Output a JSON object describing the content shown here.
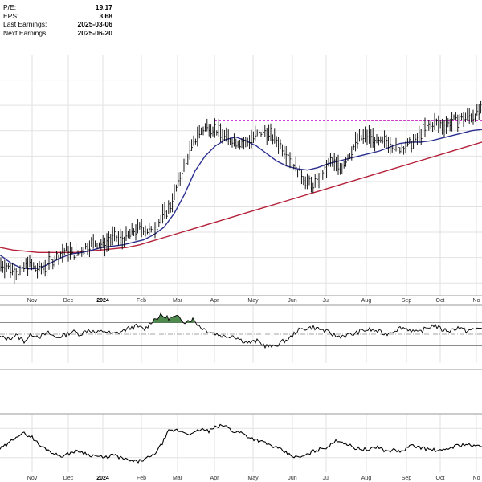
{
  "info_box": {
    "pe_label": "P/E:",
    "pe_value": "19.17",
    "eps_label": "EPS:",
    "eps_value": "3.68",
    "last_earnings_label": "Last Earnings:",
    "last_earnings_value": "2025-03-06",
    "next_earnings_label": "Next Earnings:",
    "next_earnings_value": "2025-06-20"
  },
  "colors": {
    "price_bars": "#000000",
    "ma_short": "#2b2f8f",
    "ma_long": "#b5213a",
    "resistance": "#c000c0",
    "rsi_fill": "#4e8a4e",
    "grid": "#e2e2e2"
  },
  "chart_data": {
    "type": "line",
    "x_axis_labels": [
      "Nov",
      "Dec",
      "2024",
      "Feb",
      "Mar",
      "Apr",
      "May",
      "Jun",
      "Jul",
      "Aug",
      "Sep",
      "Oct",
      "No"
    ],
    "grid": true,
    "price_panel": {
      "series": [
        {
          "kind": "ohlc_bars",
          "values": [
            305,
            302,
            298,
            306,
            300,
            304,
            310,
            316,
            312,
            318,
            322,
            320,
            326,
            324,
            330,
            334,
            330,
            340,
            350,
            372,
            392,
            408,
            414,
            410,
            404,
            402,
            400,
            406,
            410,
            404,
            396,
            385,
            374,
            366,
            375,
            386,
            380,
            392,
            404,
            406,
            400,
            402,
            396,
            398,
            402,
            412,
            416,
            414,
            418,
            420,
            422,
            426
          ]
        },
        {
          "kind": "moving_average_short",
          "values": [
            312,
            306,
            302,
            301,
            302,
            306,
            310,
            313,
            314,
            316,
            318,
            319,
            320,
            322,
            324,
            328,
            334,
            345,
            360,
            378,
            390,
            398,
            403,
            405,
            402,
            398,
            392,
            386,
            382,
            380,
            379,
            381,
            384,
            386,
            388,
            390,
            392,
            394,
            397,
            400,
            401,
            401,
            402,
            404,
            406,
            408,
            410,
            411
          ]
        },
        {
          "kind": "moving_average_long",
          "values": [
            318,
            316,
            315,
            314,
            314,
            314,
            314,
            315,
            316,
            317,
            318,
            320,
            323,
            326,
            329,
            332,
            335,
            338,
            341,
            344,
            347,
            350,
            353,
            356,
            359,
            362,
            365,
            368,
            371,
            374,
            377,
            380,
            383,
            386,
            389,
            392,
            395,
            398,
            401
          ]
        }
      ],
      "resistance_level": 418
    },
    "rsi_panel": {
      "range": [
        0,
        100
      ],
      "upper_line": 70,
      "lower_line": 30,
      "mid_line": 50,
      "values": [
        45,
        42,
        48,
        38,
        50,
        46,
        52,
        44,
        48,
        55,
        50,
        58,
        52,
        56,
        50,
        54,
        60,
        64,
        58,
        74,
        82,
        78,
        80,
        72,
        76,
        62,
        55,
        50,
        46,
        48,
        40,
        35,
        38,
        30,
        28,
        36,
        42,
        56,
        60,
        62,
        58,
        52,
        46,
        48,
        50,
        56,
        58,
        55,
        50,
        56,
        62,
        58,
        52,
        60,
        66,
        58,
        56,
        62,
        56,
        58,
        62
      ]
    },
    "lower_panel": {
      "values": [
        40,
        48,
        62,
        66,
        60,
        45,
        38,
        30,
        28,
        35,
        36,
        30,
        28,
        24,
        30,
        25,
        20,
        18,
        22,
        28,
        45,
        70,
        72,
        68,
        65,
        74,
        70,
        78,
        80,
        70,
        68,
        60,
        55,
        50,
        44,
        38,
        30,
        25,
        28,
        36,
        40,
        45,
        55,
        50,
        42,
        40,
        38,
        44,
        36,
        38,
        35,
        45,
        44,
        40,
        38,
        36,
        42,
        46,
        48,
        44,
        46
      ]
    }
  }
}
